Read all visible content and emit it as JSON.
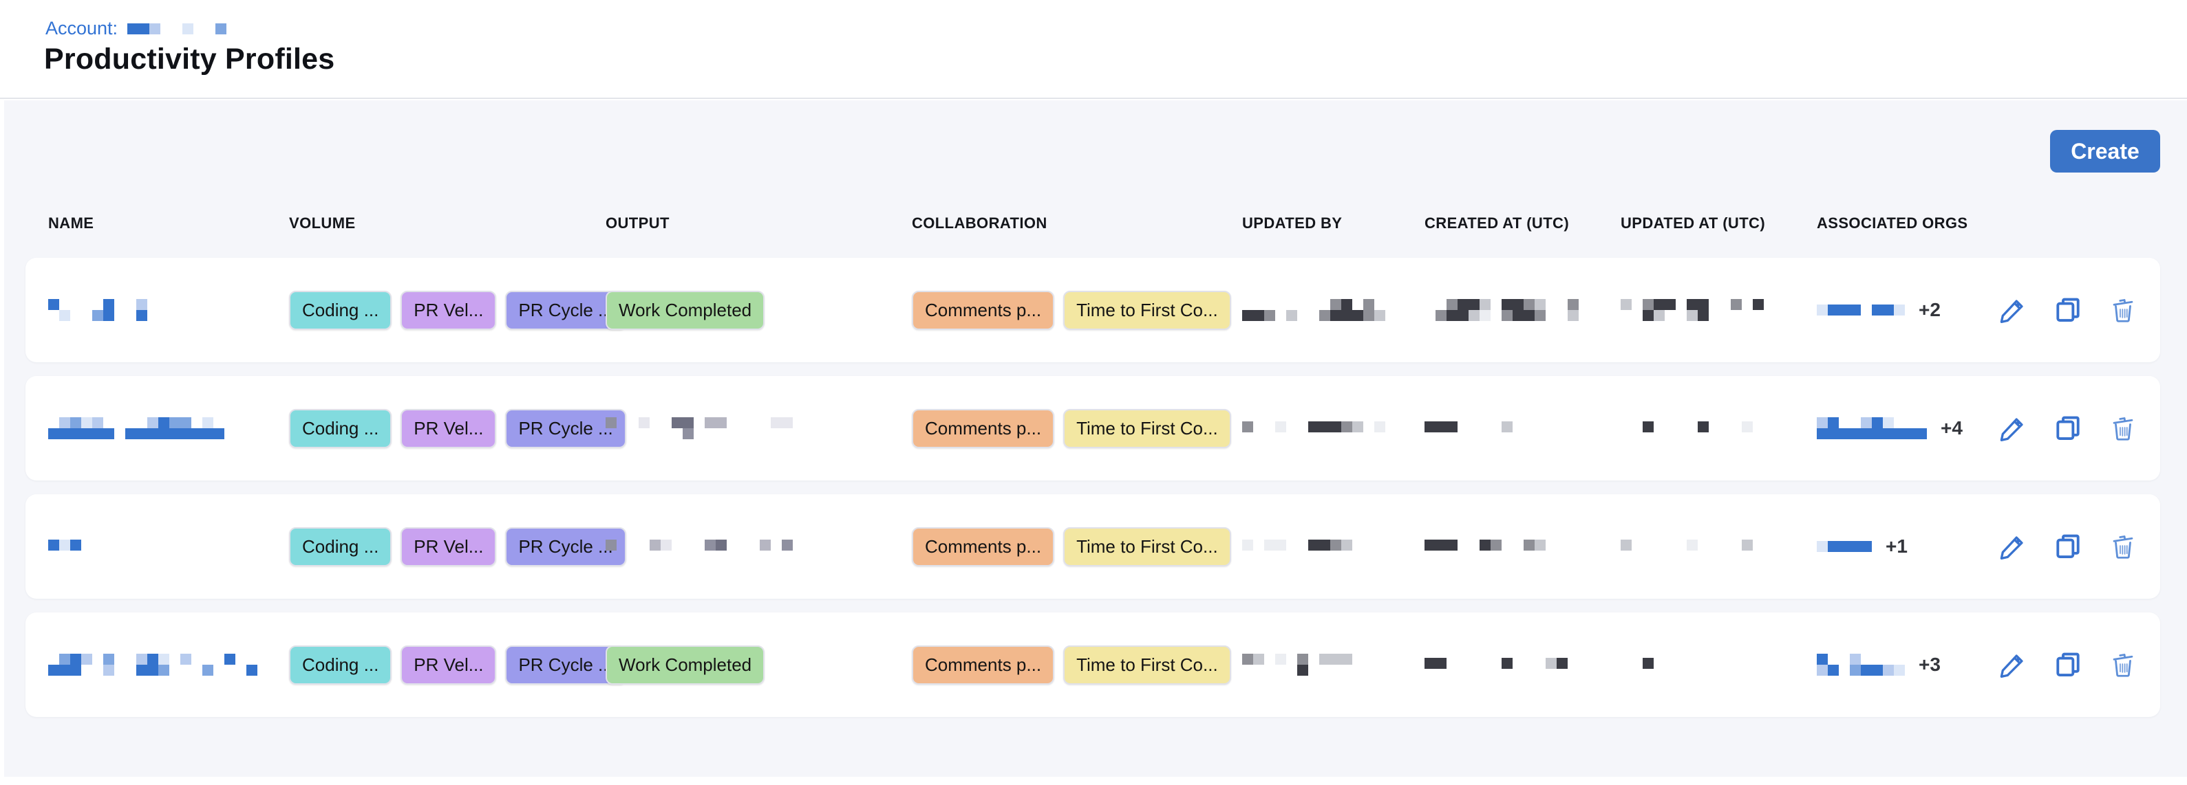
{
  "header": {
    "account_label": "Account:",
    "title": "Productivity Profiles"
  },
  "toolbar": {
    "create_label": "Create"
  },
  "colors": {
    "accent_blue": "#3a74c8",
    "link_blue": "#3273d4",
    "panel_bg": "#f5f6fa",
    "card_bg": "#ffffff",
    "icon_blue": "#3872cf",
    "icon_trash_blue": "#5e8fd8",
    "mosaic_palettes": {
      "blue": [
        "#dbe6f7",
        "#b7cbee",
        "#7fa6e0",
        "#3473cd"
      ],
      "gray": [
        "#eceef2",
        "#c6c8ce",
        "#8e8f96",
        "#3b3c44"
      ],
      "slate": [
        "#e7e7ee",
        "#b6b6c2",
        "#8f90a0",
        "#6f7082"
      ]
    }
  },
  "icons": {
    "edit": "edit-icon",
    "copy": "copy-icon",
    "delete": "delete-icon"
  },
  "account_redaction": {
    "palette": "blue",
    "rows": [
      "331..0..2"
    ]
  },
  "table": {
    "columns": [
      "NAME",
      "VOLUME",
      "OUTPUT",
      "COLLABORATION",
      "UPDATED BY",
      "CREATED AT (UTC)",
      "UPDATED AT (UTC)",
      "ASSOCIATED ORGS"
    ],
    "badges": {
      "coding": {
        "label": "Coding ...",
        "bg": "#82dbde"
      },
      "pr_velocity": {
        "label": "PR Vel...",
        "bg": "#c9a2f0"
      },
      "pr_cycle": {
        "label": "PR Cycle ...",
        "bg": "#9b9bec"
      },
      "work_completed": {
        "label": "Work Completed",
        "bg": "#a9dba1"
      },
      "comments": {
        "label": "Comments p...",
        "bg": "#f2b88c"
      },
      "time_to_first": {
        "label": "Time to First Co...",
        "bg": "#f3e7a2"
      }
    },
    "rows": [
      {
        "name_mosaic": {
          "palette": "blue",
          "rows": [
            "3....3..1",
            ".0..23..3"
          ]
        },
        "volume_badges": [
          "coding",
          "pr_velocity",
          "pr_cycle"
        ],
        "output": {
          "type": "badge",
          "badge": "work_completed"
        },
        "collab_badges": [
          "comments",
          "time_to_first"
        ],
        "updated_by": {
          "palette": "gray",
          "rows": [
            "........23.2...",
            "332.1..233321.."
          ]
        },
        "created_at": {
          "palette": "gray",
          "rows": [
            "..2331.3321..2.",
            ".23310.2332..1."
          ]
        },
        "updated_at": {
          "palette": "gray",
          "rows": [
            "1.233.33..2.3.",
            "..31..13......"
          ]
        },
        "orgs": {
          "mosaic": {
            "palette": "blue",
            "rows": [
              "0333.330"
            ]
          },
          "more": "+2"
        }
      },
      {
        "name_mosaic": {
          "palette": "blue",
          "rows": [
            ".1201....1322.0.",
            "333333.333333333"
          ]
        },
        "volume_badges": [
          "coding",
          "pr_velocity",
          "pr_cycle"
        ],
        "output": {
          "type": "mosaic",
          "mosaic": {
            "palette": "slate",
            "rows": [
              "2..0..33.11....00.",
              ".......2.........."
            ]
          }
        },
        "collab_badges": [
          "comments",
          "time_to_first"
        ],
        "updated_by": {
          "palette": "gray",
          "rows": [
            "2..0..33321.0"
          ]
        },
        "created_at": {
          "palette": "gray",
          "rows": [
            "333....1"
          ]
        },
        "updated_at": {
          "palette": "gray",
          "rows": [
            "..3....3...0"
          ]
        },
        "orgs": {
          "mosaic": {
            "palette": "blue",
            "rows": [
              "13..130...",
              "3333333333"
            ]
          },
          "more": "+4"
        }
      },
      {
        "name_mosaic": {
          "palette": "blue",
          "rows": [
            "303"
          ]
        },
        "volume_badges": [
          "coding",
          "pr_velocity",
          "pr_cycle"
        ],
        "output": {
          "type": "mosaic",
          "mosaic": {
            "palette": "slate",
            "rows": [
              "2...10...23...1.2."
            ]
          }
        },
        "collab_badges": [
          "comments",
          "time_to_first"
        ],
        "updated_by": {
          "palette": "gray",
          "rows": [
            "0.00..3321"
          ]
        },
        "created_at": {
          "palette": "gray",
          "rows": [
            "333..32..21"
          ]
        },
        "updated_at": {
          "palette": "gray",
          "rows": [
            "1.....0....1."
          ]
        },
        "orgs": {
          "mosaic": {
            "palette": "blue",
            "rows": [
              "03333"
            ]
          },
          "more": "+1"
        }
      },
      {
        "name_mosaic": {
          "palette": "blue",
          "rows": [
            ".231.2..130.1...3..",
            "333..1..332...2...3"
          ]
        },
        "volume_badges": [
          "coding",
          "pr_velocity",
          "pr_cycle"
        ],
        "output": {
          "type": "badge",
          "badge": "work_completed"
        },
        "collab_badges": [
          "comments",
          "time_to_first"
        ],
        "updated_by": {
          "palette": "gray",
          "rows": [
            "21.0.2.111",
            ".....3...."
          ]
        },
        "created_at": {
          "palette": "gray",
          "rows": [
            "33.....3...13"
          ]
        },
        "updated_at": {
          "palette": "gray",
          "rows": [
            "..3"
          ]
        },
        "orgs": {
          "mosaic": {
            "palette": "blue",
            "rows": [
              "3..1....",
              "13.23310"
            ]
          },
          "more": "+3"
        }
      }
    ]
  }
}
